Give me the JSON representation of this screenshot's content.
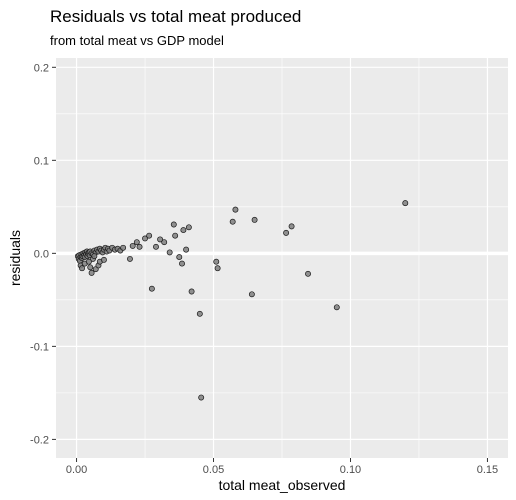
{
  "chart_data": {
    "type": "scatter",
    "title": "Residuals vs total meat produced",
    "subtitle": "from total meat vs GDP model",
    "xlabel": "total meat_observed",
    "ylabel": "residuals",
    "xlim": [
      -0.0075,
      0.1575
    ],
    "ylim": [
      -0.22,
      0.21
    ],
    "x_ticks": [
      0.0,
      0.05,
      0.1,
      0.15
    ],
    "x_tick_labels": [
      "0.00",
      "0.05",
      "0.10",
      "0.15"
    ],
    "y_ticks": [
      -0.2,
      -0.1,
      0.0,
      0.1,
      0.2
    ],
    "y_tick_labels": [
      "-0.2",
      "-0.1",
      "0.0",
      "0.1",
      "0.2"
    ],
    "reference_line_y": 0,
    "grid": true,
    "colors": {
      "panel": "#ebebeb",
      "grid": "#ffffff",
      "point_fill": "#7f7f7f",
      "point_stroke": "#1a1a1a"
    },
    "points": [
      {
        "x": 0.0005,
        "y": -0.003
      },
      {
        "x": 0.0008,
        "y": -0.006
      },
      {
        "x": 0.001,
        "y": -0.002
      },
      {
        "x": 0.0012,
        "y": -0.008
      },
      {
        "x": 0.0015,
        "y": -0.004
      },
      {
        "x": 0.0018,
        "y": -0.001
      },
      {
        "x": 0.002,
        "y": -0.005
      },
      {
        "x": 0.0022,
        "y": -0.003
      },
      {
        "x": 0.0025,
        "y": 0.0
      },
      {
        "x": 0.0028,
        "y": -0.002
      },
      {
        "x": 0.003,
        "y": -0.004
      },
      {
        "x": 0.0032,
        "y": 0.001
      },
      {
        "x": 0.0035,
        "y": -0.001
      },
      {
        "x": 0.0038,
        "y": 0.002
      },
      {
        "x": 0.004,
        "y": -0.003
      },
      {
        "x": 0.0042,
        "y": 0.0
      },
      {
        "x": 0.0045,
        "y": 0.001
      },
      {
        "x": 0.0048,
        "y": -0.002
      },
      {
        "x": 0.005,
        "y": 0.002
      },
      {
        "x": 0.0055,
        "y": 0.0
      },
      {
        "x": 0.006,
        "y": -0.001
      },
      {
        "x": 0.0065,
        "y": 0.003
      },
      {
        "x": 0.007,
        "y": 0.001
      },
      {
        "x": 0.0075,
        "y": 0.004
      },
      {
        "x": 0.008,
        "y": 0.002
      },
      {
        "x": 0.0085,
        "y": 0.005
      },
      {
        "x": 0.009,
        "y": 0.003
      },
      {
        "x": 0.0095,
        "y": 0.001
      },
      {
        "x": 0.01,
        "y": 0.004
      },
      {
        "x": 0.0105,
        "y": 0.006
      },
      {
        "x": 0.011,
        "y": 0.002
      },
      {
        "x": 0.0115,
        "y": 0.005
      },
      {
        "x": 0.012,
        "y": 0.003
      },
      {
        "x": 0.013,
        "y": 0.006
      },
      {
        "x": 0.014,
        "y": 0.004
      },
      {
        "x": 0.015,
        "y": 0.005
      },
      {
        "x": 0.016,
        "y": 0.003
      },
      {
        "x": 0.017,
        "y": 0.006
      },
      {
        "x": 0.0015,
        "y": -0.013
      },
      {
        "x": 0.002,
        "y": -0.016
      },
      {
        "x": 0.003,
        "y": -0.011
      },
      {
        "x": 0.005,
        "y": -0.015
      },
      {
        "x": 0.0055,
        "y": -0.021
      },
      {
        "x": 0.007,
        "y": -0.017
      },
      {
        "x": 0.008,
        "y": -0.013
      },
      {
        "x": 0.0085,
        "y": -0.009
      },
      {
        "x": 0.01,
        "y": -0.007
      },
      {
        "x": 0.006,
        "y": -0.006
      },
      {
        "x": 0.0045,
        "y": -0.009
      },
      {
        "x": 0.0065,
        "y": -0.003
      },
      {
        "x": 0.0195,
        "y": -0.006
      },
      {
        "x": 0.0205,
        "y": 0.008
      },
      {
        "x": 0.022,
        "y": 0.012
      },
      {
        "x": 0.023,
        "y": 0.007
      },
      {
        "x": 0.025,
        "y": 0.016
      },
      {
        "x": 0.0265,
        "y": 0.019
      },
      {
        "x": 0.0275,
        "y": -0.038
      },
      {
        "x": 0.029,
        "y": 0.007
      },
      {
        "x": 0.0305,
        "y": 0.015
      },
      {
        "x": 0.032,
        "y": 0.012
      },
      {
        "x": 0.034,
        "y": 0.001
      },
      {
        "x": 0.0355,
        "y": 0.031
      },
      {
        "x": 0.036,
        "y": 0.019
      },
      {
        "x": 0.0375,
        "y": -0.004
      },
      {
        "x": 0.0385,
        "y": -0.011
      },
      {
        "x": 0.039,
        "y": 0.025
      },
      {
        "x": 0.04,
        "y": 0.004
      },
      {
        "x": 0.041,
        "y": 0.028
      },
      {
        "x": 0.042,
        "y": -0.041
      },
      {
        "x": 0.045,
        "y": -0.065
      },
      {
        "x": 0.0455,
        "y": -0.155
      },
      {
        "x": 0.051,
        "y": -0.009
      },
      {
        "x": 0.0515,
        "y": -0.016
      },
      {
        "x": 0.057,
        "y": 0.034
      },
      {
        "x": 0.058,
        "y": 0.047
      },
      {
        "x": 0.064,
        "y": -0.044
      },
      {
        "x": 0.065,
        "y": 0.036
      },
      {
        "x": 0.0765,
        "y": 0.022
      },
      {
        "x": 0.0785,
        "y": 0.029
      },
      {
        "x": 0.0845,
        "y": -0.022
      },
      {
        "x": 0.095,
        "y": -0.058
      },
      {
        "x": 0.12,
        "y": 0.054
      }
    ]
  }
}
